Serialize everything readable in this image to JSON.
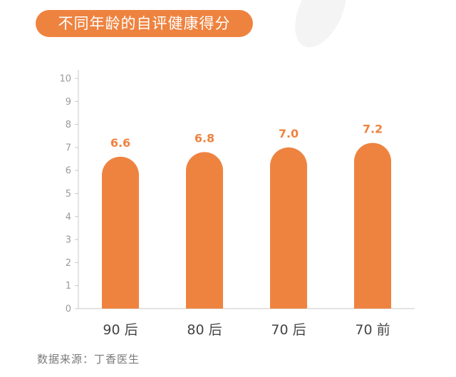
{
  "title": "不同年龄的自评健康得分",
  "source": "数据来源：丁香医生",
  "colors": {
    "bar": "#EE8340",
    "title_bg": "#EE8340",
    "value_label": "#EE8340",
    "axis": "#c8c8c8"
  },
  "chart_data": {
    "type": "bar",
    "categories": [
      "90 后",
      "80 后",
      "70 后",
      "70 前"
    ],
    "values": [
      6.6,
      6.8,
      7.0,
      7.2
    ],
    "value_labels": [
      "6.6",
      "6.8",
      "7.0",
      "7.2"
    ],
    "yticks": [
      0,
      1,
      2,
      3,
      4,
      5,
      6,
      7,
      8,
      9,
      10
    ],
    "ylim": [
      0,
      10
    ],
    "grid": false,
    "xlabel": "",
    "ylabel": ""
  }
}
